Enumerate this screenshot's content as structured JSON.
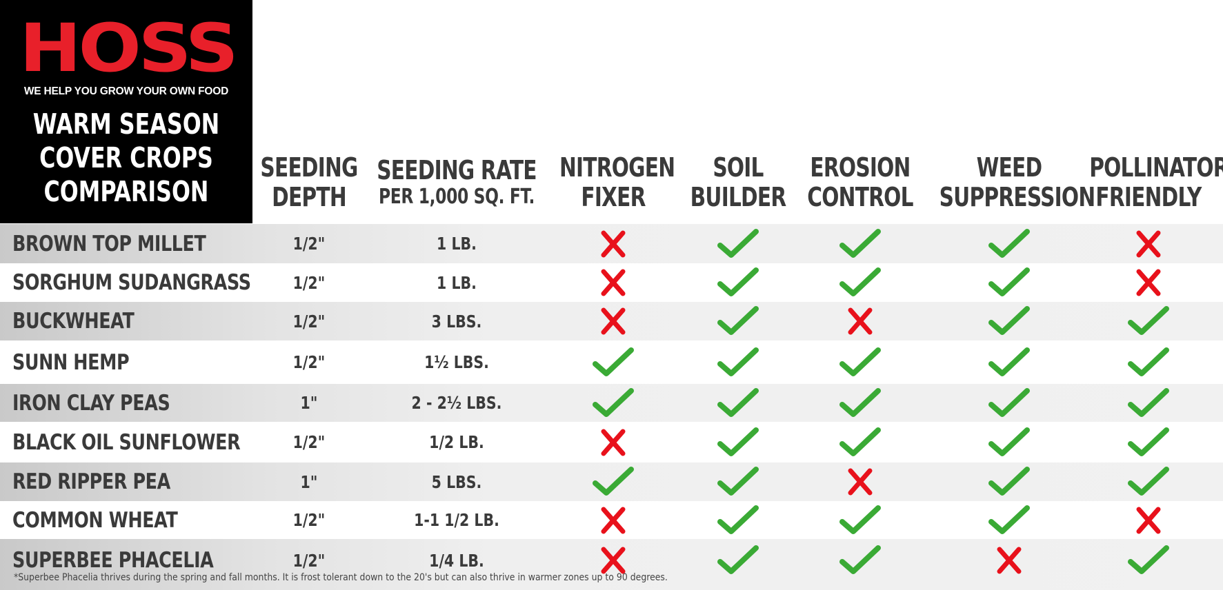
{
  "brand": {
    "logo_text": "HOSS",
    "tagline": "WE HELP YOU GROW YOUR OWN FOOD",
    "title_lines": [
      "WARM SEASON",
      "COVER CROPS",
      "COMPARISON"
    ]
  },
  "colors": {
    "check": "#3aaa35",
    "cross": "#e8111b",
    "logo": "#e8202a"
  },
  "columns": [
    {
      "line1": "SEEDING",
      "line2": "DEPTH"
    },
    {
      "line1": "SEEDING RATE",
      "line2": "PER 1,000 SQ. FT."
    },
    {
      "line1": "NITROGEN",
      "line2": "FIXER"
    },
    {
      "line1": "SOIL",
      "line2": "BUILDER"
    },
    {
      "line1": "EROSION",
      "line2": "CONTROL"
    },
    {
      "line1": "WEED",
      "line2": "SUPPRESSION"
    },
    {
      "line1": "POLLINATOR",
      "line2": "FRIENDLY"
    }
  ],
  "rows": [
    {
      "crop": "BROWN TOP MILLET",
      "depth": "1/2\"",
      "rate": "1 LB.",
      "nitrogen": "cross",
      "soil": "check",
      "erosion": "check",
      "weed": "check",
      "pollinator": "cross"
    },
    {
      "crop": "SORGHUM SUDANGRASS",
      "depth": "1/2\"",
      "rate": "1 LB.",
      "nitrogen": "cross",
      "soil": "check",
      "erosion": "check",
      "weed": "check",
      "pollinator": "cross"
    },
    {
      "crop": "BUCKWHEAT",
      "depth": "1/2\"",
      "rate": "3 LBS.",
      "nitrogen": "cross",
      "soil": "check",
      "erosion": "cross",
      "weed": "check",
      "pollinator": "check"
    },
    {
      "crop": "SUNN HEMP",
      "depth": "1/2\"",
      "rate": "1½ LBS.",
      "nitrogen": "check",
      "soil": "check",
      "erosion": "check",
      "weed": "check",
      "pollinator": "check"
    },
    {
      "crop": "IRON CLAY PEAS",
      "depth": "1\"",
      "rate": "2 - 2½ LBS.",
      "nitrogen": "check",
      "soil": "check",
      "erosion": "check",
      "weed": "check",
      "pollinator": "check"
    },
    {
      "crop": "BLACK OIL SUNFLOWER",
      "depth": "1/2\"",
      "rate": "1/2 LB.",
      "nitrogen": "cross",
      "soil": "check",
      "erosion": "check",
      "weed": "check",
      "pollinator": "check"
    },
    {
      "crop": "RED RIPPER PEA",
      "depth": "1\"",
      "rate": "5 LBS.",
      "nitrogen": "check",
      "soil": "check",
      "erosion": "cross",
      "weed": "check",
      "pollinator": "check"
    },
    {
      "crop": "COMMON WHEAT",
      "depth": "1/2\"",
      "rate": "1-1 1/2 LB.",
      "nitrogen": "cross",
      "soil": "check",
      "erosion": "check",
      "weed": "check",
      "pollinator": "cross"
    },
    {
      "crop": "SUPERBEE PHACELIA",
      "depth": "1/2\"",
      "rate": "1/4 LB.",
      "nitrogen": "cross",
      "soil": "check",
      "erosion": "check",
      "weed": "cross",
      "pollinator": "check"
    }
  ],
  "footnote": "*Superbee Phacelia thrives during the spring and fall months. It is frost tolerant down to the 20's but can also thrive in warmer zones up to 90 degrees."
}
